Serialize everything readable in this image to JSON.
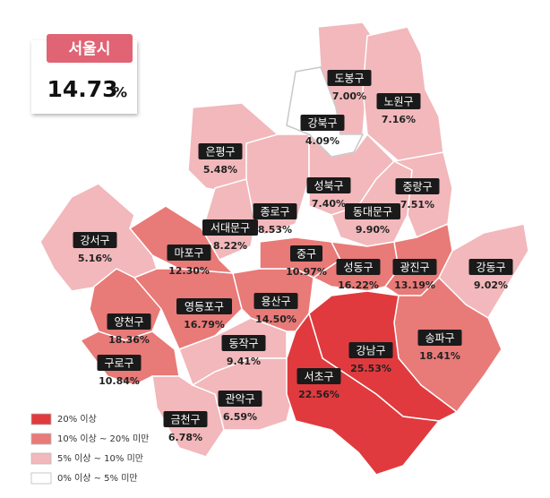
{
  "header": {
    "region": "서울시",
    "value": "14.73",
    "unit": "%"
  },
  "districts": [
    {
      "name": "도봉구",
      "value": "7.00%",
      "color": "#f2b8bb"
    },
    {
      "name": "노원구",
      "value": "7.16%",
      "color": "#f2b8bb"
    },
    {
      "name": "은평구",
      "value": "5.48%",
      "color": "#f2b8bb"
    },
    {
      "name": "종로구",
      "value": "8.53%",
      "color": "#f2b8bb"
    },
    {
      "name": "성북구",
      "value": "7.40%",
      "color": "#f2b8bb"
    },
    {
      "name": "서대문구",
      "value": "8.22%",
      "color": "#f2b8bb"
    },
    {
      "name": "마포구",
      "value": "12.30%",
      "color": "#e87a78"
    },
    {
      "name": "강서구",
      "value": "5.16%",
      "color": "#f2b8bb"
    },
    {
      "name": "양천구",
      "value": "18.36%",
      "color": "#e87a78"
    },
    {
      "name": "구로구",
      "value": "10.84%",
      "color": "#e87a78"
    },
    {
      "name": "영등포구",
      "value": "16.79%",
      "color": "#e87a78"
    },
    {
      "name": "금천구",
      "value": "6.78%",
      "color": "#f2b8bb"
    },
    {
      "name": "동작구",
      "value": "9.41%",
      "color": "#f2b8bb"
    },
    {
      "name": "관악구",
      "value": "6.59%",
      "color": "#f2b8bb"
    },
    {
      "name": "용산구",
      "value": "14.50%",
      "color": "#e87a78"
    },
    {
      "name": "중구",
      "value": "10.97%",
      "color": "#e87a78"
    },
    {
      "name": "동대문구",
      "value": "9.90%",
      "color": "#f2b8bb"
    },
    {
      "name": "중랑구",
      "value": "7.51%",
      "color": "#f2b8bb"
    },
    {
      "name": "성동구",
      "value": "16.22%",
      "color": "#e87a78"
    },
    {
      "name": "광진구",
      "value": "13.19%",
      "color": "#e87a78"
    },
    {
      "name": "강동구",
      "value": "9.02%",
      "color": "#f2b8bb"
    },
    {
      "name": "송파구",
      "value": "18.41%",
      "color": "#e87a78"
    },
    {
      "name": "강남구",
      "value": "25.53%",
      "color": "#e03a3e"
    },
    {
      "name": "서초구",
      "value": "22.56%",
      "color": "#e03a3e"
    },
    {
      "name": "강북구",
      "value": "4.09%",
      "color": "#ffffff"
    }
  ],
  "legend": [
    {
      "label": "20% 이상",
      "color": "#e03a3e"
    },
    {
      "label": "10% 이상 ~ 20% 미만",
      "color": "#e87a78"
    },
    {
      "label": "5% 이상 ~ 10% 미만",
      "color": "#f2b8bb"
    },
    {
      "label": "0% 이상 ~ 5% 미만",
      "color": "#ffffff"
    }
  ]
}
